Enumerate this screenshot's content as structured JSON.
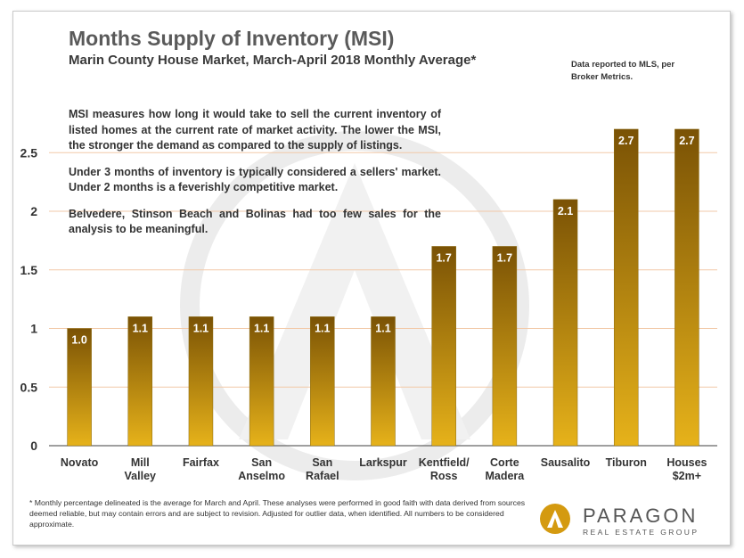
{
  "chart_data": {
    "type": "bar",
    "title": "Months Supply of Inventory (MSI)",
    "subtitle": "Marin County House Market, March-April 2018 Monthly Average*",
    "source_note": "Data reported to MLS, per Broker Metrics.",
    "categories": [
      [
        "Novato"
      ],
      [
        "Mill",
        "Valley"
      ],
      [
        "Fairfax"
      ],
      [
        "San",
        "Anselmo"
      ],
      [
        "San",
        "Rafael"
      ],
      [
        "Larkspur"
      ],
      [
        "Kentfield/",
        "Ross"
      ],
      [
        "Corte",
        "Madera"
      ],
      [
        "Sausalito"
      ],
      [
        "Tiburon"
      ],
      [
        "Houses",
        "$2m+"
      ]
    ],
    "values": [
      1.0,
      1.1,
      1.1,
      1.1,
      1.1,
      1.1,
      1.7,
      1.7,
      2.1,
      2.7,
      2.7
    ],
    "value_labels": [
      "1.0",
      "1.1",
      "1.1",
      "1.1",
      "1.1",
      "1.1",
      "1.7",
      "1.7",
      "2.1",
      "2.7",
      "2.7"
    ],
    "yticks": [
      0,
      0.5,
      1,
      1.5,
      2,
      2.5
    ],
    "ytick_labels": [
      "0",
      "0.5",
      "1",
      "1.5",
      "2",
      "2.5"
    ],
    "ylim": [
      0,
      2.9
    ],
    "grid": true,
    "xlabel": "",
    "ylabel": ""
  },
  "notes": [
    "MSI measures how long it would take to sell the current inventory of listed homes at the current rate of market activity. The lower the MSI, the stronger the demand as compared to the supply of listings.",
    "Under 3 months of inventory is typically considered a sellers' market. Under 2 months is a feverishly competitive market.",
    "Belvedere, Stinson Beach and Bolinas had too few sales for the analysis to be meaningful."
  ],
  "footnote": "* Monthly percentage delineated is the average for March and April. These analyses were performed in good faith with data derived from sources deemed reliable, but may contain errors and are subject to revision. Adjusted for outlier data, when identified. All numbers to be considered approximate.",
  "logo": {
    "name": "PARAGON",
    "tagline": "REAL ESTATE GROUP"
  },
  "colors": {
    "bar_top": "#7a5205",
    "bar_bottom": "#e6b21a",
    "grid": "#f2c9a8",
    "text": "#333333",
    "accent": "#d49a10"
  }
}
